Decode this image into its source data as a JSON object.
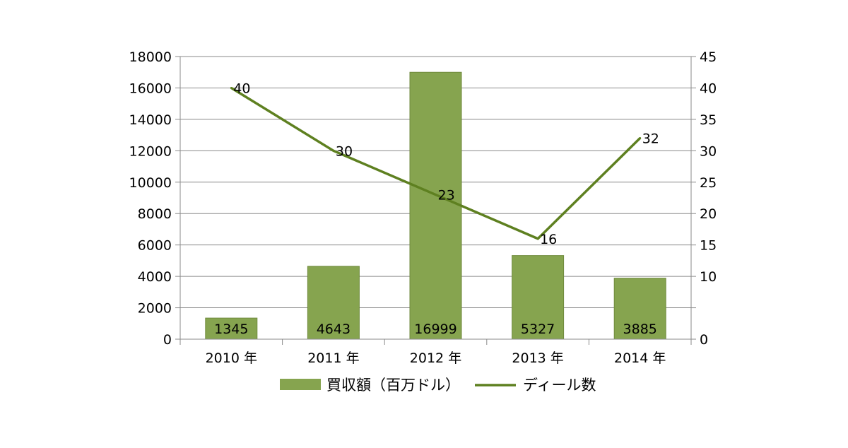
{
  "chart_data": {
    "type": "bar+line",
    "categories": [
      "2010 年",
      "2011 年",
      "2012 年",
      "2013 年",
      "2014 年"
    ],
    "series": [
      {
        "name": "買収額（百万ドル）",
        "type": "bar",
        "axis": "left",
        "values": [
          1345,
          4643,
          16999,
          5327,
          3885
        ],
        "color": "#86A44F"
      },
      {
        "name": "ディール数",
        "type": "line",
        "axis": "right",
        "values": [
          40,
          30,
          23,
          16,
          32
        ],
        "color": "#5E8020"
      }
    ],
    "left_axis": {
      "ylim": [
        0,
        18000
      ],
      "ticks": [
        0,
        2000,
        4000,
        6000,
        8000,
        10000,
        12000,
        14000,
        16000,
        18000
      ],
      "tick_labels": [
        "0",
        "2000",
        "4000",
        "6000",
        "8000",
        "10000",
        "12000",
        "14000",
        "16000",
        "18000"
      ]
    },
    "right_axis": {
      "ylim": [
        0,
        45
      ],
      "ticks": [
        0,
        5,
        10,
        15,
        20,
        25,
        30,
        35,
        40,
        45
      ],
      "tick_labels": [
        "0",
        "",
        "10",
        "15",
        "20",
        "25",
        "30",
        "35",
        "40",
        "45"
      ]
    },
    "grid": true,
    "legend_position": "bottom",
    "title": "",
    "xlabel": "",
    "ylabel": ""
  }
}
